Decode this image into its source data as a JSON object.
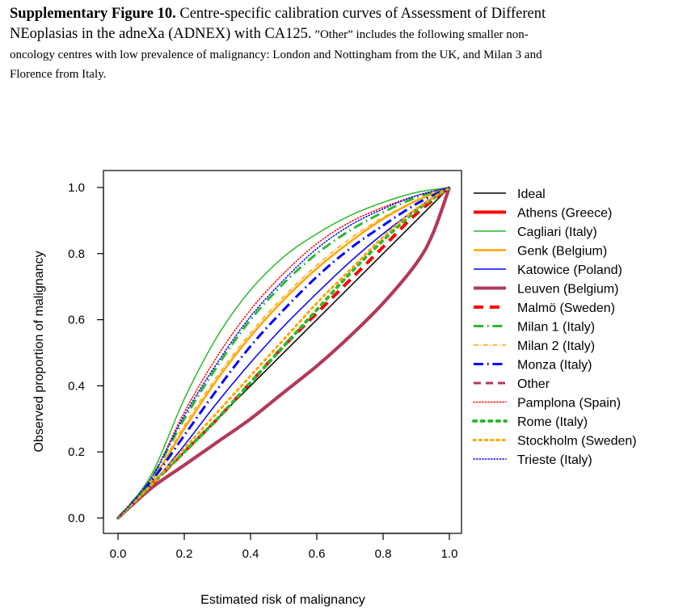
{
  "caption": {
    "label": "Supplementary Figure 10.",
    "line1_rest": " Centre-specific calibration curves of Assessment of Different",
    "line2_main": "NEoplasias in the adneXa (ADNEX) with CA125.",
    "line2_small": " ”Other” includes the following smaller non-",
    "line3": "oncology centres with low prevalence of malignancy: London and Nottingham from the UK, and Milan 3 and",
    "line4": "Florence from Italy."
  },
  "chart_data": {
    "type": "line",
    "xlabel": "Estimated risk of malignancy",
    "ylabel": "Observed proportion of malignancy",
    "xlim": [
      0,
      1
    ],
    "ylim": [
      0,
      1
    ],
    "xticks": [
      "0.0",
      "0.2",
      "0.4",
      "0.6",
      "0.8",
      "1.0"
    ],
    "yticks": [
      "0.0",
      "0.2",
      "0.4",
      "0.6",
      "0.8",
      "1.0"
    ],
    "grid": false,
    "legend_position": "right",
    "series": [
      {
        "name": "Ideal",
        "color": "#000000",
        "dash": "solid",
        "width": 1.5,
        "x": [
          0,
          1
        ],
        "y": [
          0,
          1
        ]
      },
      {
        "name": "Athens (Greece)",
        "color": "#ff0000",
        "dash": "solid",
        "width": 4,
        "x": [
          0,
          0.1,
          0.2,
          0.3,
          0.4,
          0.5,
          0.6,
          0.7,
          0.8,
          0.9,
          0.95,
          1.0
        ],
        "y": [
          0,
          0.09,
          0.16,
          0.23,
          0.3,
          0.38,
          0.46,
          0.55,
          0.65,
          0.77,
          0.86,
          1.0
        ]
      },
      {
        "name": "Cagliari (Italy)",
        "color": "#2eb82e",
        "dash": "solid",
        "width": 1.5,
        "x": [
          0,
          0.1,
          0.2,
          0.3,
          0.4,
          0.5,
          0.6,
          0.7,
          0.8,
          0.9,
          1.0
        ],
        "y": [
          0,
          0.13,
          0.36,
          0.55,
          0.69,
          0.79,
          0.86,
          0.915,
          0.955,
          0.985,
          1.0
        ]
      },
      {
        "name": "Genk (Belgium)",
        "color": "#ffa500",
        "dash": "solid",
        "width": 2.5,
        "x": [
          0,
          0.1,
          0.2,
          0.3,
          0.4,
          0.5,
          0.6,
          0.7,
          0.8,
          0.9,
          1.0
        ],
        "y": [
          0,
          0.11,
          0.27,
          0.42,
          0.55,
          0.66,
          0.755,
          0.835,
          0.905,
          0.96,
          1.0
        ]
      },
      {
        "name": "Katowice (Poland)",
        "color": "#0000ff",
        "dash": "solid",
        "width": 1.5,
        "x": [
          0,
          0.1,
          0.2,
          0.3,
          0.4,
          0.5,
          0.6,
          0.7,
          0.8,
          0.9,
          1.0
        ],
        "y": [
          0,
          0.1,
          0.22,
          0.35,
          0.47,
          0.58,
          0.68,
          0.775,
          0.86,
          0.935,
          1.0
        ]
      },
      {
        "name": "Leuven (Belgium)",
        "color": "#b03a5b",
        "dash": "solid",
        "width": 4,
        "x": [
          0,
          0.1,
          0.2,
          0.3,
          0.4,
          0.5,
          0.6,
          0.7,
          0.8,
          0.9,
          0.95,
          1.0
        ],
        "y": [
          0,
          0.09,
          0.16,
          0.23,
          0.3,
          0.38,
          0.46,
          0.55,
          0.65,
          0.77,
          0.86,
          1.0
        ]
      },
      {
        "name": "Malmö (Sweden)",
        "color": "#ff0000",
        "dash": "dashed",
        "width": 4,
        "x": [
          0,
          0.1,
          0.2,
          0.3,
          0.4,
          0.5,
          0.6,
          0.7,
          0.8,
          0.9,
          1.0
        ],
        "y": [
          0,
          0.1,
          0.2,
          0.3,
          0.41,
          0.52,
          0.62,
          0.72,
          0.82,
          0.92,
          1.0
        ]
      },
      {
        "name": "Milan 1 (Italy)",
        "color": "#2eb82e",
        "dash": "dashdot",
        "width": 3,
        "x": [
          0,
          0.1,
          0.2,
          0.3,
          0.4,
          0.5,
          0.6,
          0.7,
          0.8,
          0.9,
          1.0
        ],
        "y": [
          0,
          0.12,
          0.3,
          0.46,
          0.6,
          0.71,
          0.8,
          0.87,
          0.925,
          0.97,
          1.0
        ]
      },
      {
        "name": "Milan 2 (Italy)",
        "color": "#ffa500",
        "dash": "dashdot",
        "width": 1.5,
        "x": [
          0,
          0.1,
          0.2,
          0.3,
          0.4,
          0.5,
          0.6,
          0.7,
          0.8,
          0.9,
          1.0
        ],
        "y": [
          0,
          0.11,
          0.28,
          0.43,
          0.56,
          0.67,
          0.765,
          0.845,
          0.91,
          0.96,
          1.0
        ]
      },
      {
        "name": "Monza (Italy)",
        "color": "#0000ff",
        "dash": "dashdot",
        "width": 3,
        "x": [
          0,
          0.1,
          0.2,
          0.3,
          0.4,
          0.5,
          0.6,
          0.7,
          0.8,
          0.9,
          1.0
        ],
        "y": [
          0,
          0.11,
          0.25,
          0.39,
          0.52,
          0.63,
          0.73,
          0.815,
          0.885,
          0.95,
          1.0
        ]
      },
      {
        "name": "Other",
        "color": "#b03a5b",
        "dash": "dashed",
        "width": 3,
        "x": [
          0,
          0.1,
          0.2,
          0.3,
          0.4,
          0.5,
          0.6,
          0.7,
          0.8,
          0.9,
          0.95,
          1.0
        ],
        "y": [
          0,
          0.09,
          0.16,
          0.23,
          0.3,
          0.38,
          0.46,
          0.55,
          0.65,
          0.77,
          0.86,
          1.0
        ]
      },
      {
        "name": "Pamplona (Spain)",
        "color": "#ff0000",
        "dash": "dotted",
        "width": 1.5,
        "x": [
          0,
          0.1,
          0.2,
          0.3,
          0.4,
          0.5,
          0.6,
          0.7,
          0.8,
          0.9,
          1.0
        ],
        "y": [
          0,
          0.12,
          0.32,
          0.49,
          0.63,
          0.74,
          0.83,
          0.895,
          0.94,
          0.975,
          1.0
        ]
      },
      {
        "name": "Rome (Italy)",
        "color": "#2eb82e",
        "dash": "dotted",
        "width": 4,
        "x": [
          0,
          0.1,
          0.2,
          0.3,
          0.4,
          0.5,
          0.6,
          0.7,
          0.8,
          0.9,
          1.0
        ],
        "y": [
          0,
          0.1,
          0.2,
          0.3,
          0.41,
          0.52,
          0.63,
          0.74,
          0.84,
          0.93,
          1.0
        ]
      },
      {
        "name": "Stockholm (Sweden)",
        "color": "#ffa500",
        "dash": "dotted",
        "width": 3,
        "x": [
          0,
          0.1,
          0.2,
          0.3,
          0.4,
          0.5,
          0.6,
          0.7,
          0.8,
          0.9,
          1.0
        ],
        "y": [
          0,
          0.1,
          0.21,
          0.32,
          0.43,
          0.54,
          0.65,
          0.75,
          0.85,
          0.935,
          1.0
        ]
      },
      {
        "name": "Trieste (Italy)",
        "color": "#0000ff",
        "dash": "dotted",
        "width": 1.5,
        "x": [
          0,
          0.1,
          0.2,
          0.3,
          0.4,
          0.5,
          0.6,
          0.7,
          0.8,
          0.9,
          1.0
        ],
        "y": [
          0,
          0.12,
          0.31,
          0.47,
          0.61,
          0.72,
          0.815,
          0.885,
          0.935,
          0.975,
          1.0
        ]
      }
    ]
  }
}
